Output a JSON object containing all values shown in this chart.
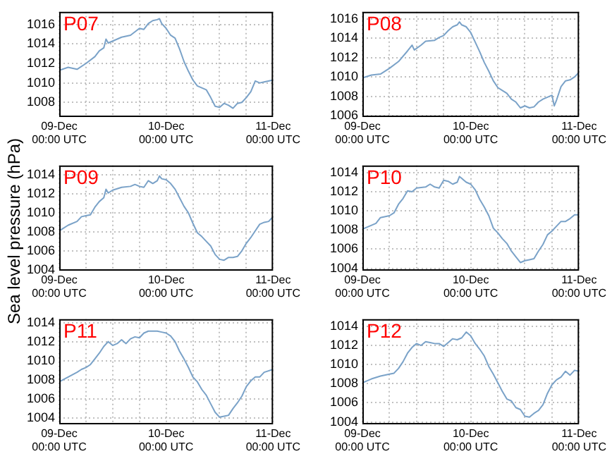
{
  "chart_data": [
    {
      "type": "line",
      "title": "P07",
      "x": [
        "--12-09T00:00",
        "--12-09T02:00",
        "--12-09T04:00",
        "--12-09T06:00",
        "--12-09T08:00",
        "--12-09T09:00",
        "--12-09T10:00",
        "--12-09T10:30",
        "--12-09T11:00",
        "--12-09T12:00",
        "--12-09T14:00",
        "--12-09T16:00",
        "--12-09T18:00",
        "--12-09T19:00",
        "--12-09T20:00",
        "--12-09T21:00",
        "--12-09T22:00",
        "--12-09T22:30",
        "--12-09T23:00",
        "--12-10T00:00",
        "--12-10T01:00",
        "--12-10T02:00",
        "--12-10T03:00",
        "--12-10T04:00",
        "--12-10T05:00",
        "--12-10T06:00",
        "--12-10T07:00",
        "--12-10T08:00",
        "--12-10T09:00",
        "--12-10T10:00",
        "--12-10T11:00",
        "--12-10T12:00",
        "--12-10T13:00",
        "--12-10T14:00",
        "--12-10T15:00",
        "--12-10T16:00",
        "--12-10T17:00",
        "--12-10T18:00",
        "--12-10T19:00",
        "--12-10T20:00",
        "--12-10T21:00",
        "--12-10T22:00",
        "--12-11T00:00"
      ],
      "series": [
        {
          "color": "#7aa2c8",
          "values": [
            1011.3,
            1011.6,
            1011.4,
            1012.0,
            1012.7,
            1013.3,
            1013.6,
            1014.5,
            1014.1,
            1014.3,
            1014.7,
            1014.9,
            1015.6,
            1015.5,
            1016.1,
            1016.4,
            1016.5,
            1016.6,
            1016.1,
            1015.6,
            1014.9,
            1014.6,
            1013.5,
            1012.2,
            1011.2,
            1010.3,
            1009.7,
            1009.5,
            1009.3,
            1008.5,
            1007.6,
            1007.5,
            1007.9,
            1007.7,
            1007.4,
            1007.9,
            1008.0,
            1008.5,
            1009.1,
            1010.2,
            1010.0,
            1010.1,
            1010.3
          ]
        }
      ],
      "xlim": [
        "--12-09T00:00",
        "--12-11T00:00"
      ],
      "xticks": [
        {
          "value": "--12-09T00:00",
          "label": "09-Dec\n00:00 UTC"
        },
        {
          "value": "--12-09T06:00",
          "label": null
        },
        {
          "value": "--12-09T12:00",
          "label": null
        },
        {
          "value": "--12-09T18:00",
          "label": null
        },
        {
          "value": "--12-10T00:00",
          "label": "10-Dec\n00:00 UTC"
        },
        {
          "value": "--12-10T06:00",
          "label": null
        },
        {
          "value": "--12-10T12:00",
          "label": null
        },
        {
          "value": "--12-10T18:00",
          "label": null
        },
        {
          "value": "--12-11T00:00",
          "label": "11-Dec\n00:00 UTC"
        }
      ],
      "ylim": [
        1006.5,
        1017.3
      ],
      "yticks": [
        1008,
        1010,
        1012,
        1014,
        1016
      ],
      "grid": true,
      "marker": "none",
      "line_style": "solid"
    },
    {
      "type": "line",
      "title": "P08",
      "x": [
        "--12-09T00:00",
        "--12-09T02:00",
        "--12-09T04:00",
        "--12-09T06:00",
        "--12-09T08:00",
        "--12-09T10:00",
        "--12-09T11:00",
        "--12-09T11:30",
        "--12-09T13:00",
        "--12-09T14:00",
        "--12-09T16:00",
        "--12-09T17:00",
        "--12-09T18:00",
        "--12-09T19:00",
        "--12-09T20:00",
        "--12-09T21:00",
        "--12-09T21:30",
        "--12-09T22:00",
        "--12-09T23:00",
        "--12-10T00:00",
        "--12-10T01:00",
        "--12-10T02:00",
        "--12-10T03:00",
        "--12-10T04:00",
        "--12-10T05:00",
        "--12-10T06:00",
        "--12-10T07:00",
        "--12-10T08:00",
        "--12-10T09:00",
        "--12-10T10:00",
        "--12-10T11:00",
        "--12-10T12:00",
        "--12-10T13:00",
        "--12-10T14:00",
        "--12-10T15:00",
        "--12-10T16:00",
        "--12-10T17:00",
        "--12-10T18:00",
        "--12-10T18:30",
        "--12-10T19:00",
        "--12-10T20:00",
        "--12-10T21:00",
        "--12-10T22:00",
        "--12-10T23:00",
        "--12-11T00:00"
      ],
      "series": [
        {
          "color": "#7aa2c8",
          "values": [
            1009.9,
            1010.2,
            1010.3,
            1010.9,
            1011.6,
            1012.7,
            1013.3,
            1012.8,
            1013.3,
            1013.7,
            1013.8,
            1014.1,
            1014.3,
            1014.8,
            1015.2,
            1015.4,
            1015.7,
            1015.4,
            1015.2,
            1014.6,
            1013.6,
            1012.6,
            1011.5,
            1010.6,
            1009.6,
            1008.9,
            1008.6,
            1008.3,
            1007.7,
            1007.4,
            1006.8,
            1007.0,
            1006.8,
            1006.9,
            1007.4,
            1007.7,
            1007.9,
            1008.1,
            1007.0,
            1007.6,
            1009.0,
            1009.6,
            1009.7,
            1010.0,
            1010.5
          ]
        }
      ],
      "xlim": [
        "--12-09T00:00",
        "--12-11T00:00"
      ],
      "xticks": [
        {
          "value": "--12-09T00:00",
          "label": "09-Dec\n00:00 UTC"
        },
        {
          "value": "--12-09T06:00",
          "label": null
        },
        {
          "value": "--12-09T12:00",
          "label": null
        },
        {
          "value": "--12-09T18:00",
          "label": null
        },
        {
          "value": "--12-10T00:00",
          "label": "10-Dec\n00:00 UTC"
        },
        {
          "value": "--12-10T06:00",
          "label": null
        },
        {
          "value": "--12-10T12:00",
          "label": null
        },
        {
          "value": "--12-10T18:00",
          "label": null
        },
        {
          "value": "--12-11T00:00",
          "label": "11-Dec\n00:00 UTC"
        }
      ],
      "ylim": [
        1005.85,
        1016.75
      ],
      "yticks": [
        1006,
        1008,
        1010,
        1012,
        1014,
        1016
      ],
      "grid": true,
      "marker": "none",
      "line_style": "solid"
    },
    {
      "type": "line",
      "title": "P09",
      "ylabel": "Sea level pressure (hPa)",
      "x": [
        "--12-09T00:00",
        "--12-09T02:00",
        "--12-09T04:00",
        "--12-09T05:00",
        "--12-09T06:00",
        "--12-09T07:00",
        "--12-09T08:00",
        "--12-09T09:00",
        "--12-09T10:00",
        "--12-09T10:30",
        "--12-09T11:00",
        "--12-09T12:00",
        "--12-09T14:00",
        "--12-09T16:00",
        "--12-09T17:00",
        "--12-09T18:00",
        "--12-09T19:00",
        "--12-09T20:00",
        "--12-09T21:00",
        "--12-09T22:00",
        "--12-09T22:30",
        "--12-09T23:00",
        "--12-10T00:00",
        "--12-10T01:00",
        "--12-10T02:00",
        "--12-10T03:00",
        "--12-10T04:00",
        "--12-10T05:00",
        "--12-10T06:00",
        "--12-10T07:00",
        "--12-10T08:00",
        "--12-10T09:00",
        "--12-10T10:00",
        "--12-10T11:00",
        "--12-10T12:00",
        "--12-10T13:00",
        "--12-10T14:00",
        "--12-10T15:00",
        "--12-10T16:00",
        "--12-10T17:00",
        "--12-10T18:00",
        "--12-10T19:00",
        "--12-10T20:00",
        "--12-10T21:00",
        "--12-10T22:00",
        "--12-10T23:00",
        "--12-11T00:00"
      ],
      "series": [
        {
          "color": "#7aa2c8",
          "values": [
            1008.1,
            1008.7,
            1009.1,
            1009.6,
            1009.7,
            1009.8,
            1010.6,
            1011.2,
            1011.6,
            1012.5,
            1012.1,
            1012.4,
            1012.7,
            1012.8,
            1013.0,
            1012.8,
            1012.7,
            1013.4,
            1013.1,
            1013.4,
            1013.9,
            1013.6,
            1013.5,
            1013.1,
            1012.5,
            1011.6,
            1010.7,
            1010.0,
            1008.9,
            1007.9,
            1007.5,
            1007.0,
            1006.5,
            1005.6,
            1005.1,
            1005.0,
            1005.3,
            1005.3,
            1005.4,
            1006.0,
            1006.8,
            1007.4,
            1008.1,
            1008.8,
            1009.0,
            1009.1,
            1009.6
          ]
        }
      ],
      "xlim": [
        "--12-09T00:00",
        "--12-11T00:00"
      ],
      "xticks": [
        {
          "value": "--12-09T00:00",
          "label": "09-Dec\n00:00 UTC"
        },
        {
          "value": "--12-09T06:00",
          "label": null
        },
        {
          "value": "--12-09T12:00",
          "label": null
        },
        {
          "value": "--12-09T18:00",
          "label": null
        },
        {
          "value": "--12-10T00:00",
          "label": "10-Dec\n00:00 UTC"
        },
        {
          "value": "--12-10T06:00",
          "label": null
        },
        {
          "value": "--12-10T12:00",
          "label": null
        },
        {
          "value": "--12-10T18:00",
          "label": null
        },
        {
          "value": "--12-11T00:00",
          "label": "11-Dec\n00:00 UTC"
        }
      ],
      "ylim": [
        1003.9,
        1015
      ],
      "yticks": [
        1004,
        1006,
        1008,
        1010,
        1012,
        1014
      ],
      "grid": true,
      "marker": "none",
      "line_style": "solid"
    },
    {
      "type": "line",
      "title": "P10",
      "x": [
        "--12-09T00:00",
        "--12-09T02:00",
        "--12-09T03:00",
        "--12-09T04:00",
        "--12-09T06:00",
        "--12-09T07:00",
        "--12-09T08:00",
        "--12-09T09:00",
        "--12-09T10:00",
        "--12-09T11:00",
        "--12-09T12:00",
        "--12-09T14:00",
        "--12-09T15:00",
        "--12-09T16:00",
        "--12-09T17:00",
        "--12-09T18:00",
        "--12-09T19:00",
        "--12-09T20:00",
        "--12-09T21:00",
        "--12-09T21:30",
        "--12-09T22:00",
        "--12-09T23:00",
        "--12-10T00:00",
        "--12-10T01:00",
        "--12-10T02:00",
        "--12-10T03:00",
        "--12-10T04:00",
        "--12-10T05:00",
        "--12-10T06:00",
        "--12-10T07:00",
        "--12-10T08:00",
        "--12-10T09:00",
        "--12-10T10:00",
        "--12-10T11:00",
        "--12-10T12:00",
        "--12-10T13:00",
        "--12-10T14:00",
        "--12-10T15:00",
        "--12-10T16:00",
        "--12-10T17:00",
        "--12-10T18:00",
        "--12-10T19:00",
        "--12-10T20:00",
        "--12-10T21:00",
        "--12-10T22:00",
        "--12-10T23:00",
        "--12-11T00:00"
      ],
      "series": [
        {
          "color": "#7aa2c8",
          "values": [
            1008.1,
            1008.5,
            1008.7,
            1009.3,
            1009.5,
            1009.8,
            1010.7,
            1011.3,
            1012.1,
            1012.0,
            1012.4,
            1012.5,
            1012.8,
            1012.5,
            1012.4,
            1013.2,
            1013.1,
            1012.8,
            1013.0,
            1013.6,
            1013.4,
            1013.0,
            1012.8,
            1012.2,
            1011.2,
            1010.4,
            1009.5,
            1008.2,
            1007.7,
            1007.1,
            1006.6,
            1005.8,
            1005.2,
            1004.6,
            1004.8,
            1004.9,
            1005.0,
            1005.8,
            1006.5,
            1007.5,
            1007.9,
            1008.4,
            1008.9,
            1008.9,
            1009.2,
            1009.6,
            1009.6
          ]
        }
      ],
      "xlim": [
        "--12-09T00:00",
        "--12-11T00:00"
      ],
      "xticks": [
        {
          "value": "--12-09T00:00",
          "label": "09-Dec\n00:00 UTC"
        },
        {
          "value": "--12-09T06:00",
          "label": null
        },
        {
          "value": "--12-09T12:00",
          "label": null
        },
        {
          "value": "--12-09T18:00",
          "label": null
        },
        {
          "value": "--12-10T00:00",
          "label": "10-Dec\n00:00 UTC"
        },
        {
          "value": "--12-10T06:00",
          "label": null
        },
        {
          "value": "--12-10T12:00",
          "label": null
        },
        {
          "value": "--12-10T18:00",
          "label": null
        },
        {
          "value": "--12-11T00:00",
          "label": "11-Dec\n00:00 UTC"
        }
      ],
      "ylim": [
        1003.75,
        1014.75
      ],
      "yticks": [
        1004,
        1006,
        1008,
        1010,
        1012,
        1014
      ],
      "grid": true,
      "marker": "none",
      "line_style": "solid"
    },
    {
      "type": "line",
      "title": "P11",
      "x": [
        "--12-09T00:00",
        "--12-09T02:00",
        "--12-09T04:00",
        "--12-09T05:00",
        "--12-09T06:00",
        "--12-09T07:00",
        "--12-09T08:00",
        "--12-09T09:00",
        "--12-09T10:00",
        "--12-09T11:00",
        "--12-09T12:00",
        "--12-09T13:00",
        "--12-09T14:00",
        "--12-09T15:00",
        "--12-09T16:00",
        "--12-09T17:00",
        "--12-09T18:00",
        "--12-09T19:00",
        "--12-09T20:00",
        "--12-09T21:00",
        "--12-09T22:00",
        "--12-09T23:00",
        "--12-10T00:00",
        "--12-10T01:00",
        "--12-10T02:00",
        "--12-10T03:00",
        "--12-10T04:00",
        "--12-10T05:00",
        "--12-10T06:00",
        "--12-10T07:00",
        "--12-10T08:00",
        "--12-10T09:00",
        "--12-10T10:00",
        "--12-10T11:00",
        "--12-10T12:00",
        "--12-10T13:00",
        "--12-10T14:00",
        "--12-10T15:00",
        "--12-10T16:00",
        "--12-10T17:00",
        "--12-10T18:00",
        "--12-10T19:00",
        "--12-10T20:00",
        "--12-10T21:00",
        "--12-10T22:00",
        "--12-11T00:00"
      ],
      "series": [
        {
          "color": "#7aa2c8",
          "values": [
            1007.8,
            1008.3,
            1008.8,
            1009.1,
            1009.3,
            1009.6,
            1010.2,
            1010.8,
            1011.5,
            1012.0,
            1011.6,
            1011.8,
            1012.2,
            1011.8,
            1012.3,
            1012.5,
            1012.4,
            1012.9,
            1013.1,
            1013.1,
            1013.1,
            1013.0,
            1012.9,
            1012.6,
            1012.0,
            1011.0,
            1010.2,
            1009.3,
            1008.3,
            1007.8,
            1007.0,
            1006.4,
            1005.5,
            1004.6,
            1004.1,
            1004.2,
            1004.3,
            1005.0,
            1005.6,
            1006.3,
            1007.3,
            1007.9,
            1008.3,
            1008.3,
            1008.8,
            1009.1
          ]
        }
      ],
      "xlim": [
        "--12-09T00:00",
        "--12-11T00:00"
      ],
      "xticks": [
        {
          "value": "--12-09T00:00",
          "label": "09-Dec\n00:00 UTC"
        },
        {
          "value": "--12-09T06:00",
          "label": null
        },
        {
          "value": "--12-09T12:00",
          "label": null
        },
        {
          "value": "--12-09T18:00",
          "label": null
        },
        {
          "value": "--12-10T00:00",
          "label": "10-Dec\n00:00 UTC"
        },
        {
          "value": "--12-10T06:00",
          "label": null
        },
        {
          "value": "--12-10T12:00",
          "label": null
        },
        {
          "value": "--12-10T18:00",
          "label": null
        },
        {
          "value": "--12-11T00:00",
          "label": "11-Dec\n00:00 UTC"
        }
      ],
      "ylim": [
        1003.35,
        1014.35
      ],
      "yticks": [
        1004,
        1006,
        1008,
        1010,
        1012,
        1014
      ],
      "grid": true,
      "marker": "none",
      "line_style": "solid"
    },
    {
      "type": "line",
      "title": "P12",
      "x": [
        "--12-09T00:00",
        "--12-09T02:00",
        "--12-09T04:00",
        "--12-09T06:00",
        "--12-09T07:00",
        "--12-09T08:00",
        "--12-09T09:00",
        "--12-09T10:00",
        "--12-09T11:00",
        "--12-09T12:00",
        "--12-09T13:00",
        "--12-09T14:00",
        "--12-09T15:00",
        "--12-09T16:00",
        "--12-09T17:00",
        "--12-09T18:00",
        "--12-09T19:00",
        "--12-09T20:00",
        "--12-09T21:00",
        "--12-09T22:00",
        "--12-09T23:00",
        "--12-10T00:00",
        "--12-10T01:00",
        "--12-10T02:00",
        "--12-10T03:00",
        "--12-10T04:00",
        "--12-10T05:00",
        "--12-10T06:00",
        "--12-10T07:00",
        "--12-10T08:00",
        "--12-10T09:00",
        "--12-10T10:00",
        "--12-10T11:00",
        "--12-10T12:00",
        "--12-10T13:00",
        "--12-10T14:00",
        "--12-10T15:00",
        "--12-10T16:00",
        "--12-10T17:00",
        "--12-10T18:00",
        "--12-10T19:00",
        "--12-10T20:00",
        "--12-10T21:00",
        "--12-10T22:00",
        "--12-10T23:00",
        "--12-11T00:00"
      ],
      "series": [
        {
          "color": "#7aa2c8",
          "values": [
            1008.1,
            1008.5,
            1008.8,
            1009.0,
            1009.1,
            1009.6,
            1010.3,
            1011.2,
            1011.8,
            1012.2,
            1012.0,
            1012.4,
            1012.3,
            1012.2,
            1012.2,
            1011.9,
            1012.3,
            1012.7,
            1012.6,
            1012.8,
            1013.4,
            1013.0,
            1012.2,
            1011.6,
            1010.9,
            1009.8,
            1009.0,
            1008.1,
            1007.2,
            1006.4,
            1006.2,
            1005.5,
            1005.3,
            1004.6,
            1004.5,
            1004.9,
            1005.2,
            1005.8,
            1007.0,
            1007.9,
            1008.4,
            1008.7,
            1009.3,
            1008.9,
            1009.4,
            1009.3
          ]
        }
      ],
      "xlim": [
        "--12-09T00:00",
        "--12-11T00:00"
      ],
      "xticks": [
        {
          "value": "--12-09T00:00",
          "label": "09-Dec\n00:00 UTC"
        },
        {
          "value": "--12-09T06:00",
          "label": null
        },
        {
          "value": "--12-09T12:00",
          "label": null
        },
        {
          "value": "--12-09T18:00",
          "label": null
        },
        {
          "value": "--12-10T00:00",
          "label": "10-Dec\n00:00 UTC"
        },
        {
          "value": "--12-10T06:00",
          "label": null
        },
        {
          "value": "--12-10T12:00",
          "label": null
        },
        {
          "value": "--12-10T18:00",
          "label": null
        },
        {
          "value": "--12-11T00:00",
          "label": "11-Dec\n00:00 UTC"
        }
      ],
      "ylim": [
        1003.75,
        1014.75
      ],
      "yticks": [
        1004,
        1006,
        1008,
        1010,
        1012,
        1014
      ],
      "grid": true,
      "marker": "none",
      "line_style": "solid"
    }
  ]
}
